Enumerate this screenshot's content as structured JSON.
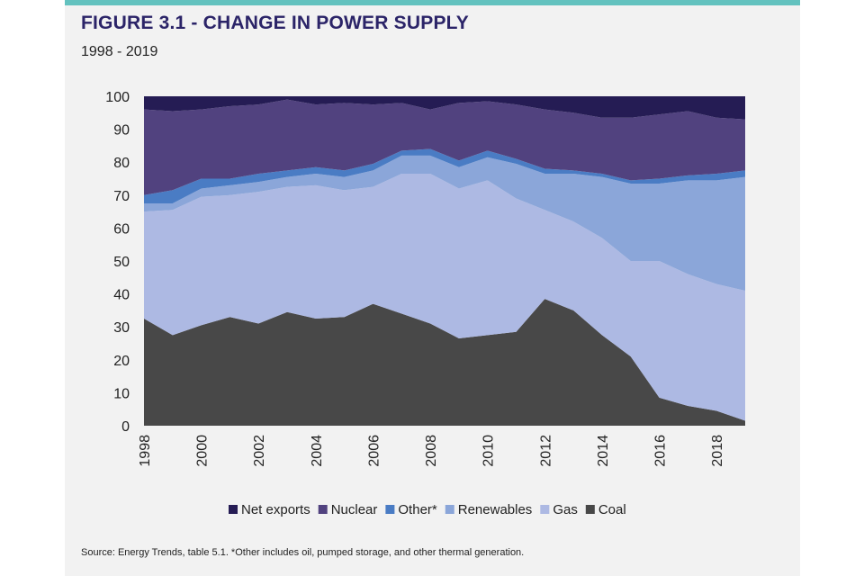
{
  "header": {
    "title": "FIGURE 3.1 - CHANGE IN POWER SUPPLY",
    "subtitle": "1998 - 2019"
  },
  "footer": {
    "source": "Source: Energy Trends, table 5.1. *Other includes oil, pumped storage, and other thermal generation."
  },
  "colors": {
    "accent_bar": "#63c2bf",
    "title": "#2b2468"
  },
  "chart_data": {
    "type": "area",
    "stacked": true,
    "x": [
      1998,
      1999,
      2000,
      2001,
      2002,
      2003,
      2004,
      2005,
      2006,
      2007,
      2008,
      2009,
      2010,
      2011,
      2012,
      2013,
      2014,
      2015,
      2016,
      2017,
      2018,
      2019
    ],
    "xticks": [
      "1998",
      "2000",
      "2002",
      "2004",
      "2006",
      "2008",
      "2010",
      "2012",
      "2014",
      "2016",
      "2018"
    ],
    "yticks": [
      "0",
      "10",
      "20",
      "30",
      "40",
      "50",
      "60",
      "70",
      "80",
      "90",
      "100"
    ],
    "ylim": [
      0,
      100
    ],
    "legend_position": "bottom",
    "series": [
      {
        "name": "Coal",
        "color": "#484848",
        "values": [
          32.5,
          27.5,
          30.5,
          33,
          31,
          34.5,
          32.5,
          33,
          37,
          34,
          31,
          26.5,
          27.5,
          28.5,
          38.5,
          35,
          27.5,
          21,
          8.5,
          6,
          4.5,
          1.5
        ]
      },
      {
        "name": "Gas",
        "color": "#adb9e3",
        "values": [
          32.5,
          38,
          39,
          37,
          40,
          38,
          40.5,
          38.5,
          35.5,
          42.5,
          45.5,
          45.5,
          47,
          40.5,
          27,
          27,
          29.5,
          29,
          41.5,
          40,
          38.5,
          39.5
        ]
      },
      {
        "name": "Renewables",
        "color": "#8ba6d9",
        "values": [
          2.5,
          2,
          2.5,
          3,
          3,
          3,
          3.5,
          4,
          5,
          5.5,
          5.5,
          6.5,
          7,
          10.5,
          11,
          14.5,
          18.5,
          23.5,
          23.5,
          28.5,
          31.5,
          34.5
        ]
      },
      {
        "name": "Other*",
        "color": "#4a7cc4",
        "values": [
          2.5,
          4,
          3,
          2,
          2.5,
          2,
          2,
          2,
          2,
          1.5,
          2,
          2,
          2,
          1.5,
          1.5,
          1,
          1,
          1,
          1.5,
          1.5,
          2,
          2
        ]
      },
      {
        "name": "Nuclear",
        "color": "#51427f",
        "values": [
          26,
          24,
          21,
          22,
          21,
          21.5,
          19,
          20.5,
          18,
          14.5,
          12,
          17.5,
          15,
          16.5,
          18,
          17.5,
          17,
          19,
          19.5,
          19.5,
          17,
          15.5
        ]
      },
      {
        "name": "Net exports",
        "color": "#251c54",
        "values": [
          4,
          4.5,
          4,
          3,
          2.5,
          1,
          2.5,
          2,
          2.5,
          2,
          4,
          2,
          1.5,
          2.5,
          4,
          5,
          6.5,
          6.5,
          5.5,
          4.5,
          6.5,
          7
        ]
      }
    ],
    "legend_order": [
      "Net exports",
      "Nuclear",
      "Other*",
      "Renewables",
      "Gas",
      "Coal"
    ]
  }
}
